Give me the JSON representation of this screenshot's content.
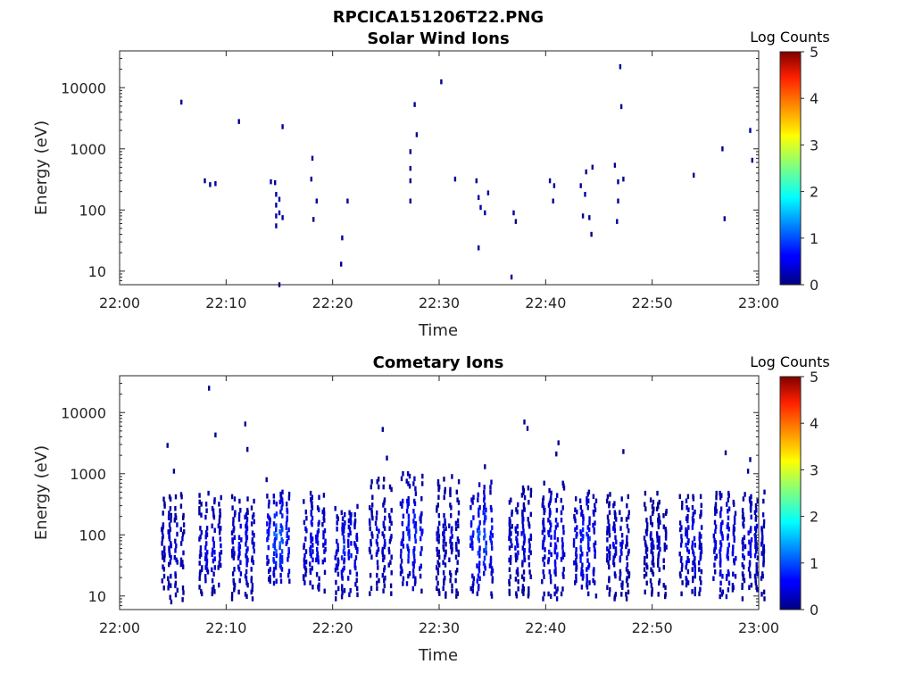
{
  "figure": {
    "suptitle": "RPCICA151206T22.PNG"
  },
  "chart_data": [
    {
      "type": "heatmap",
      "title": "Solar Wind Ions",
      "xlabel": "Time",
      "ylabel": "Energy (eV)",
      "y_scale": "log",
      "xlim": [
        "22:00",
        "23:00"
      ],
      "ylim": [
        6,
        40000
      ],
      "x_ticks": [
        "22:00",
        "22:10",
        "22:20",
        "22:30",
        "22:40",
        "22:50",
        "23:00"
      ],
      "y_ticks": [
        "10",
        "100",
        "1000",
        "10000"
      ],
      "colorbar": {
        "label": "Log Counts",
        "ticks": [
          "0",
          "1",
          "2",
          "3",
          "4",
          "5"
        ],
        "range": [
          0,
          5
        ],
        "colormap": "jet"
      },
      "cells": [
        {
          "t": 5.8,
          "e": 5800,
          "v": 0.1
        },
        {
          "t": 8.0,
          "e": 300,
          "v": 0.1
        },
        {
          "t": 8.5,
          "e": 260,
          "v": 0.1
        },
        {
          "t": 9.0,
          "e": 270,
          "v": 0.1
        },
        {
          "t": 11.2,
          "e": 2800,
          "v": 0.1
        },
        {
          "t": 14.2,
          "e": 290,
          "v": 0.15
        },
        {
          "t": 14.6,
          "e": 280,
          "v": 0.1
        },
        {
          "t": 14.7,
          "e": 180,
          "v": 0.2
        },
        {
          "t": 14.7,
          "e": 120,
          "v": 0.2
        },
        {
          "t": 14.7,
          "e": 80,
          "v": 0.2
        },
        {
          "t": 14.7,
          "e": 55,
          "v": 0.2
        },
        {
          "t": 15.0,
          "e": 150,
          "v": 0.2
        },
        {
          "t": 15.0,
          "e": 90,
          "v": 0.2
        },
        {
          "t": 15.3,
          "e": 2300,
          "v": 0.1
        },
        {
          "t": 15.3,
          "e": 75,
          "v": 0.1
        },
        {
          "t": 18.1,
          "e": 700,
          "v": 0.1
        },
        {
          "t": 18.0,
          "e": 320,
          "v": 0.1
        },
        {
          "t": 18.5,
          "e": 140,
          "v": 0.1
        },
        {
          "t": 18.2,
          "e": 70,
          "v": 0.1
        },
        {
          "t": 20.8,
          "e": 13,
          "v": 0.15
        },
        {
          "t": 20.9,
          "e": 35,
          "v": 0.1
        },
        {
          "t": 21.4,
          "e": 140,
          "v": 0.1
        },
        {
          "t": 27.3,
          "e": 900,
          "v": 0.1
        },
        {
          "t": 27.3,
          "e": 480,
          "v": 0.1
        },
        {
          "t": 27.3,
          "e": 300,
          "v": 0.1
        },
        {
          "t": 27.3,
          "e": 140,
          "v": 0.1
        },
        {
          "t": 27.7,
          "e": 5300,
          "v": 0.1
        },
        {
          "t": 27.9,
          "e": 1700,
          "v": 0.1
        },
        {
          "t": 30.2,
          "e": 12500,
          "v": 0.1
        },
        {
          "t": 31.5,
          "e": 320,
          "v": 0.1
        },
        {
          "t": 33.7,
          "e": 160,
          "v": 0.2
        },
        {
          "t": 33.9,
          "e": 110,
          "v": 0.15
        },
        {
          "t": 34.3,
          "e": 90,
          "v": 0.15
        },
        {
          "t": 34.6,
          "e": 190,
          "v": 0.15
        },
        {
          "t": 33.7,
          "e": 24,
          "v": 0.1
        },
        {
          "t": 33.5,
          "e": 300,
          "v": 0.1
        },
        {
          "t": 36.8,
          "e": 8,
          "v": 0.15
        },
        {
          "t": 37.0,
          "e": 90,
          "v": 0.1
        },
        {
          "t": 37.2,
          "e": 65,
          "v": 0.1
        },
        {
          "t": 40.4,
          "e": 300,
          "v": 0.1
        },
        {
          "t": 40.8,
          "e": 250,
          "v": 0.1
        },
        {
          "t": 40.7,
          "e": 140,
          "v": 0.1
        },
        {
          "t": 43.3,
          "e": 250,
          "v": 0.1
        },
        {
          "t": 43.7,
          "e": 180,
          "v": 0.15
        },
        {
          "t": 43.5,
          "e": 80,
          "v": 0.1
        },
        {
          "t": 44.1,
          "e": 75,
          "v": 0.1
        },
        {
          "t": 44.3,
          "e": 40,
          "v": 0.1
        },
        {
          "t": 43.8,
          "e": 420,
          "v": 0.1
        },
        {
          "t": 44.4,
          "e": 500,
          "v": 0.1
        },
        {
          "t": 46.5,
          "e": 540,
          "v": 0.1
        },
        {
          "t": 46.8,
          "e": 290,
          "v": 0.1
        },
        {
          "t": 47.0,
          "e": 22000,
          "v": 0.1
        },
        {
          "t": 47.1,
          "e": 4900,
          "v": 0.1
        },
        {
          "t": 47.3,
          "e": 320,
          "v": 0.1
        },
        {
          "t": 46.8,
          "e": 140,
          "v": 0.1
        },
        {
          "t": 46.7,
          "e": 65,
          "v": 0.1
        },
        {
          "t": 53.9,
          "e": 370,
          "v": 0.1
        },
        {
          "t": 56.6,
          "e": 1000,
          "v": 0.1
        },
        {
          "t": 56.8,
          "e": 72,
          "v": 0.1
        },
        {
          "t": 59.2,
          "e": 2000,
          "v": 0.1
        },
        {
          "t": 59.4,
          "e": 650,
          "v": 0.1
        },
        {
          "t": 15.0,
          "e": 6,
          "v": 0.1
        }
      ]
    },
    {
      "type": "heatmap",
      "title": "Cometary Ions",
      "xlabel": "Time",
      "ylabel": "Energy (eV)",
      "y_scale": "log",
      "xlim": [
        "22:00",
        "23:00"
      ],
      "ylim": [
        6,
        40000
      ],
      "x_ticks": [
        "22:00",
        "22:10",
        "22:20",
        "22:30",
        "22:40",
        "22:50",
        "23:00"
      ],
      "y_ticks": [
        "10",
        "100",
        "1000",
        "10000"
      ],
      "colorbar": {
        "label": "Log Counts",
        "ticks": [
          "0",
          "1",
          "2",
          "3",
          "4",
          "5"
        ],
        "range": [
          0,
          5
        ],
        "colormap": "jet"
      },
      "bursts": [
        {
          "t": 5.0,
          "lo": 8,
          "hi": 500,
          "peak": 0.6
        },
        {
          "t": 8.5,
          "lo": 10,
          "hi": 480,
          "peak": 0.8
        },
        {
          "t": 11.6,
          "lo": 9,
          "hi": 500,
          "peak": 0.9
        },
        {
          "t": 14.9,
          "lo": 15,
          "hi": 500,
          "peak": 1.5
        },
        {
          "t": 18.3,
          "lo": 12,
          "hi": 480,
          "peak": 1.0
        },
        {
          "t": 21.3,
          "lo": 9,
          "hi": 340,
          "peak": 1.1
        },
        {
          "t": 24.5,
          "lo": 9,
          "hi": 900,
          "peak": 0.6
        },
        {
          "t": 27.4,
          "lo": 12,
          "hi": 1000,
          "peak": 1.2
        },
        {
          "t": 30.8,
          "lo": 9,
          "hi": 900,
          "peak": 0.6
        },
        {
          "t": 34.0,
          "lo": 9,
          "hi": 800,
          "peak": 1.4
        },
        {
          "t": 37.6,
          "lo": 10,
          "hi": 700,
          "peak": 0.7
        },
        {
          "t": 40.7,
          "lo": 9,
          "hi": 700,
          "peak": 1.0
        },
        {
          "t": 43.7,
          "lo": 10,
          "hi": 500,
          "peak": 1.1
        },
        {
          "t": 46.8,
          "lo": 9,
          "hi": 500,
          "peak": 0.7
        },
        {
          "t": 50.3,
          "lo": 9,
          "hi": 480,
          "peak": 0.5
        },
        {
          "t": 53.6,
          "lo": 10,
          "hi": 500,
          "peak": 0.9
        },
        {
          "t": 56.8,
          "lo": 9,
          "hi": 480,
          "peak": 1.0
        },
        {
          "t": 59.5,
          "lo": 9,
          "hi": 500,
          "peak": 0.8
        }
      ],
      "cells": [
        {
          "t": 8.4,
          "e": 25000,
          "v": 0.1
        },
        {
          "t": 9.0,
          "e": 4300,
          "v": 0.1
        },
        {
          "t": 4.5,
          "e": 2900,
          "v": 0.1
        },
        {
          "t": 5.1,
          "e": 1100,
          "v": 0.1
        },
        {
          "t": 11.8,
          "e": 6500,
          "v": 0.1
        },
        {
          "t": 12.0,
          "e": 2500,
          "v": 0.1
        },
        {
          "t": 24.7,
          "e": 5300,
          "v": 0.1
        },
        {
          "t": 25.1,
          "e": 1800,
          "v": 0.1
        },
        {
          "t": 34.3,
          "e": 1300,
          "v": 0.1
        },
        {
          "t": 38.0,
          "e": 7000,
          "v": 0.1
        },
        {
          "t": 38.3,
          "e": 5500,
          "v": 0.1
        },
        {
          "t": 41.2,
          "e": 3200,
          "v": 0.1
        },
        {
          "t": 41.0,
          "e": 2100,
          "v": 0.1
        },
        {
          "t": 47.3,
          "e": 2300,
          "v": 0.1
        },
        {
          "t": 56.9,
          "e": 2200,
          "v": 0.1
        },
        {
          "t": 59.2,
          "e": 1700,
          "v": 0.1
        },
        {
          "t": 59.0,
          "e": 1100,
          "v": 0.1
        },
        {
          "t": 13.8,
          "e": 800,
          "v": 0.1
        }
      ]
    }
  ]
}
